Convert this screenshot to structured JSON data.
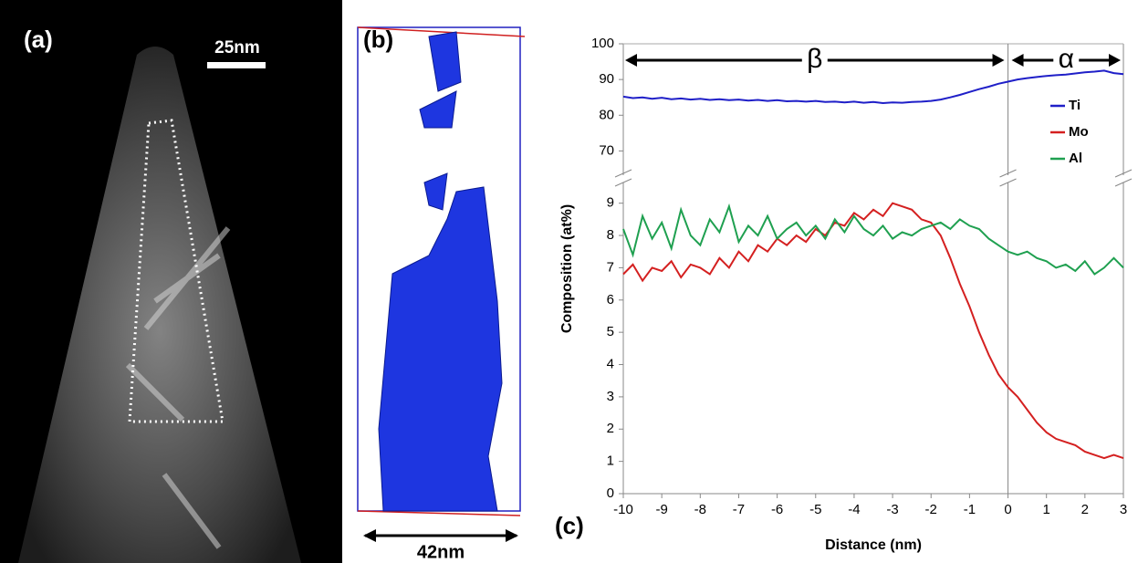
{
  "panels": {
    "a": {
      "label": "(a)",
      "scale_bar": "25nm"
    },
    "b": {
      "label": "(b)",
      "scale_bar": "42nm"
    }
  },
  "chart_data": {
    "type": "line",
    "label": "(c)",
    "x_label": "Distance (nm)",
    "y_label": "Composition (at%)",
    "annotations": [
      "β",
      "α"
    ],
    "xlim": [
      -10,
      3
    ],
    "xticks": [
      -10,
      -9,
      -8,
      -7,
      -6,
      -5,
      -4,
      -3,
      -2,
      -1,
      0,
      1,
      2,
      3
    ],
    "ylim": [
      0,
      9.5
    ],
    "yticks": [
      0,
      1,
      2,
      3,
      4,
      5,
      6,
      7,
      8,
      9
    ],
    "y2lim": [
      65,
      100
    ],
    "y2ticks": [
      70,
      80,
      90,
      100
    ],
    "legend": "upper right",
    "x": [
      -10,
      -9.75,
      -9.5,
      -9.25,
      -9,
      -8.75,
      -8.5,
      -8.25,
      -8,
      -7.75,
      -7.5,
      -7.25,
      -7,
      -6.75,
      -6.5,
      -6.25,
      -6,
      -5.75,
      -5.5,
      -5.25,
      -5,
      -4.75,
      -4.5,
      -4.25,
      -4,
      -3.75,
      -3.5,
      -3.25,
      -3,
      -2.75,
      -2.5,
      -2.25,
      -2,
      -1.75,
      -1.5,
      -1.25,
      -1,
      -0.75,
      -0.5,
      -0.25,
      0,
      0.25,
      0.5,
      0.75,
      1,
      1.25,
      1.5,
      1.75,
      2,
      2.25,
      2.5,
      2.75,
      3
    ],
    "series": [
      {
        "name": "Ti",
        "color": "#1f1fc8",
        "axis": "y2",
        "values": [
          85.2,
          84.8,
          85,
          84.6,
          84.9,
          84.5,
          84.7,
          84.4,
          84.6,
          84.3,
          84.5,
          84.2,
          84.4,
          84.1,
          84.3,
          84,
          84.2,
          83.9,
          84,
          83.8,
          84,
          83.7,
          83.8,
          83.6,
          83.8,
          83.5,
          83.7,
          83.4,
          83.6,
          83.5,
          83.7,
          83.8,
          84,
          84.4,
          85,
          85.7,
          86.5,
          87.3,
          88,
          88.8,
          89.4,
          90,
          90.4,
          90.7,
          91,
          91.2,
          91.4,
          91.7,
          92,
          92.2,
          92.5,
          91.8,
          91.5
        ]
      },
      {
        "name": "Mo",
        "color": "#d42020",
        "values": [
          6.8,
          7.1,
          6.6,
          7.0,
          6.9,
          7.2,
          6.7,
          7.1,
          7.0,
          6.8,
          7.3,
          7.0,
          7.5,
          7.2,
          7.7,
          7.5,
          7.9,
          7.7,
          8.0,
          7.8,
          8.2,
          8.0,
          8.4,
          8.3,
          8.7,
          8.5,
          8.8,
          8.6,
          9.0,
          8.9,
          8.8,
          8.5,
          8.4,
          8.0,
          7.3,
          6.5,
          5.8,
          5.0,
          4.3,
          3.7,
          3.3,
          3.0,
          2.6,
          2.2,
          1.9,
          1.7,
          1.6,
          1.5,
          1.3,
          1.2,
          1.1,
          1.2,
          1.1
        ]
      },
      {
        "name": "Al",
        "color": "#1fa050",
        "values": [
          8.2,
          7.4,
          8.6,
          7.9,
          8.4,
          7.6,
          8.8,
          8.0,
          7.7,
          8.5,
          8.1,
          8.9,
          7.8,
          8.3,
          8.0,
          8.6,
          7.9,
          8.2,
          8.4,
          8.0,
          8.3,
          7.9,
          8.5,
          8.1,
          8.6,
          8.2,
          8.0,
          8.3,
          7.9,
          8.1,
          8.0,
          8.2,
          8.3,
          8.4,
          8.2,
          8.5,
          8.3,
          8.2,
          7.9,
          7.7,
          7.5,
          7.4,
          7.5,
          7.3,
          7.2,
          7.0,
          7.1,
          6.9,
          7.2,
          6.8,
          7.0,
          7.3,
          7.0
        ]
      }
    ]
  }
}
